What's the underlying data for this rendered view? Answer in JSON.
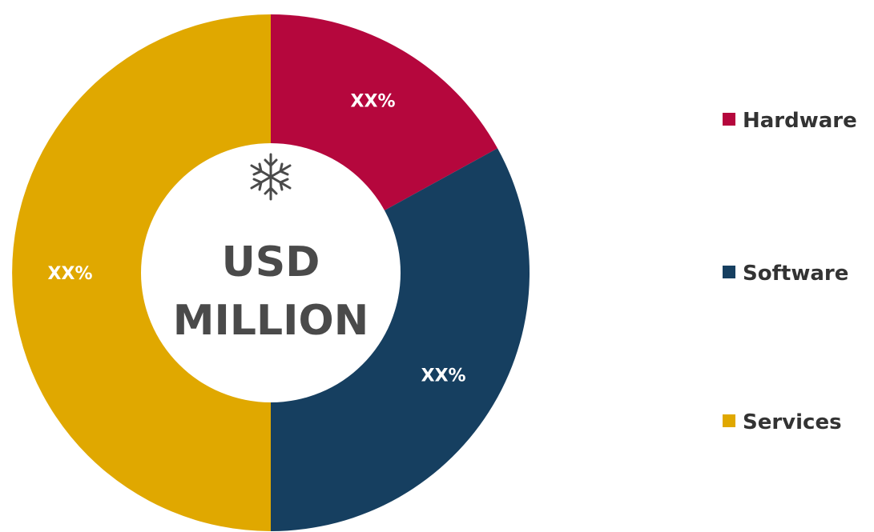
{
  "chart_data": {
    "type": "pie",
    "style": "donut",
    "center_label": [
      "USD",
      "MILLION"
    ],
    "center_icon": "snowflake-icon",
    "categories": [
      "Hardware",
      "Software",
      "Services"
    ],
    "values": [
      17,
      33,
      50
    ],
    "value_labels": [
      "XX%",
      "XX%",
      "XX%"
    ],
    "colors": [
      "#B5073D",
      "#163F60",
      "#E0A800"
    ],
    "legend": {
      "entries": [
        "Hardware",
        "Software",
        "Services"
      ],
      "placement": "right"
    }
  }
}
